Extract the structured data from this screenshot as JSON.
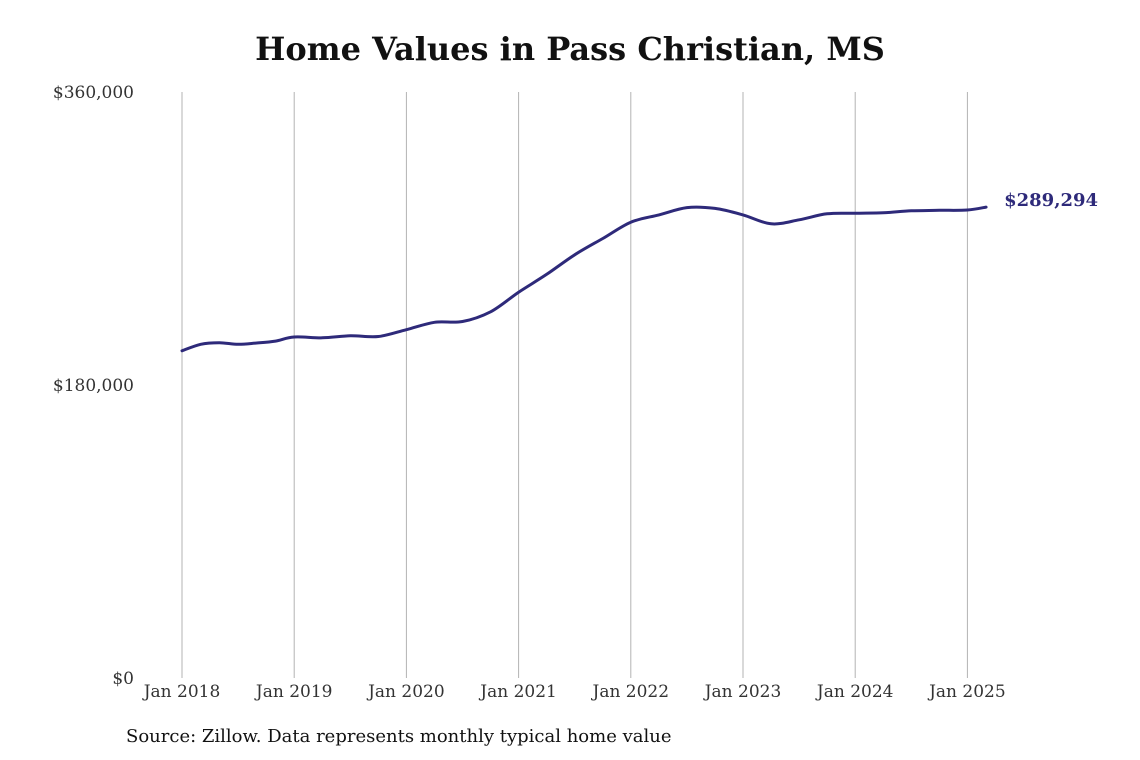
{
  "chart_data": {
    "type": "line",
    "title": "Home Values in Pass Christian, MS",
    "subtitle": "",
    "xlabel": "",
    "ylabel": "",
    "x_tick_labels": [
      "Jan 2018",
      "Jan 2019",
      "Jan 2020",
      "Jan 2021",
      "Jan 2022",
      "Jan 2023",
      "Jan 2024",
      "Jan 2025"
    ],
    "y_tick_labels": [
      "$0",
      "$180,000",
      "$360,000"
    ],
    "y_ticks": [
      0,
      180000,
      360000
    ],
    "ylim": [
      0,
      360000
    ],
    "xlim": [
      "2018-01",
      "2025-03"
    ],
    "grid": "vertical lines at x ticks",
    "legend": "none",
    "line_color": "#2e2a7a",
    "end_label": "$289,294",
    "series": [
      {
        "values": [
          {
            "x": "2018-01",
            "y": 201000
          },
          {
            "x": "2018-03",
            "y": 205000
          },
          {
            "x": "2018-05",
            "y": 206000
          },
          {
            "x": "2018-07",
            "y": 205000
          },
          {
            "x": "2018-09",
            "y": 205800
          },
          {
            "x": "2018-11",
            "y": 207000
          },
          {
            "x": "2019-01",
            "y": 209500
          },
          {
            "x": "2019-04",
            "y": 209000
          },
          {
            "x": "2019-07",
            "y": 210200
          },
          {
            "x": "2019-10",
            "y": 209800
          },
          {
            "x": "2020-01",
            "y": 214000
          },
          {
            "x": "2020-04",
            "y": 218500
          },
          {
            "x": "2020-07",
            "y": 219000
          },
          {
            "x": "2020-10",
            "y": 225000
          },
          {
            "x": "2021-01",
            "y": 237000
          },
          {
            "x": "2021-04",
            "y": 248000
          },
          {
            "x": "2021-07",
            "y": 260000
          },
          {
            "x": "2021-10",
            "y": 270000
          },
          {
            "x": "2022-01",
            "y": 280000
          },
          {
            "x": "2022-04",
            "y": 284500
          },
          {
            "x": "2022-07",
            "y": 289000
          },
          {
            "x": "2022-10",
            "y": 288500
          },
          {
            "x": "2023-01",
            "y": 284500
          },
          {
            "x": "2023-04",
            "y": 279000
          },
          {
            "x": "2023-07",
            "y": 281500
          },
          {
            "x": "2023-10",
            "y": 285200
          },
          {
            "x": "2024-01",
            "y": 285500
          },
          {
            "x": "2024-04",
            "y": 285800
          },
          {
            "x": "2024-07",
            "y": 287000
          },
          {
            "x": "2024-10",
            "y": 287300
          },
          {
            "x": "2025-01",
            "y": 287500
          },
          {
            "x": "2025-03",
            "y": 289294
          }
        ]
      }
    ]
  },
  "source_note": "Source: Zillow. Data represents monthly typical home value"
}
